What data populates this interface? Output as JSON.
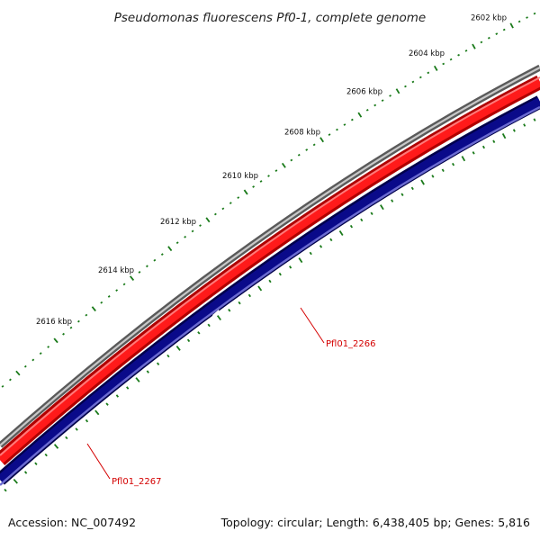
{
  "title": "Pseudomonas fluorescens Pf0-1, complete genome",
  "footer": {
    "accession": "Accession: NC_007492",
    "summary": "Topology: circular; Length: 6,438,405 bp; Genes: 5,816"
  },
  "ruler": {
    "labels": [
      "2602 kbp",
      "2604 kbp",
      "2606 kbp",
      "2608 kbp",
      "2610 kbp",
      "2612 kbp",
      "2614 kbp",
      "2616 kbp"
    ]
  },
  "genes": {
    "labels": [
      "Pfl01_2266",
      "Pfl01_2267"
    ]
  },
  "colors": {
    "backbone": "#888888",
    "forward_strand": "#e60000",
    "reverse_strand": "#000080",
    "ticks": "#1a7a1a",
    "gene_label": "#d40000"
  }
}
